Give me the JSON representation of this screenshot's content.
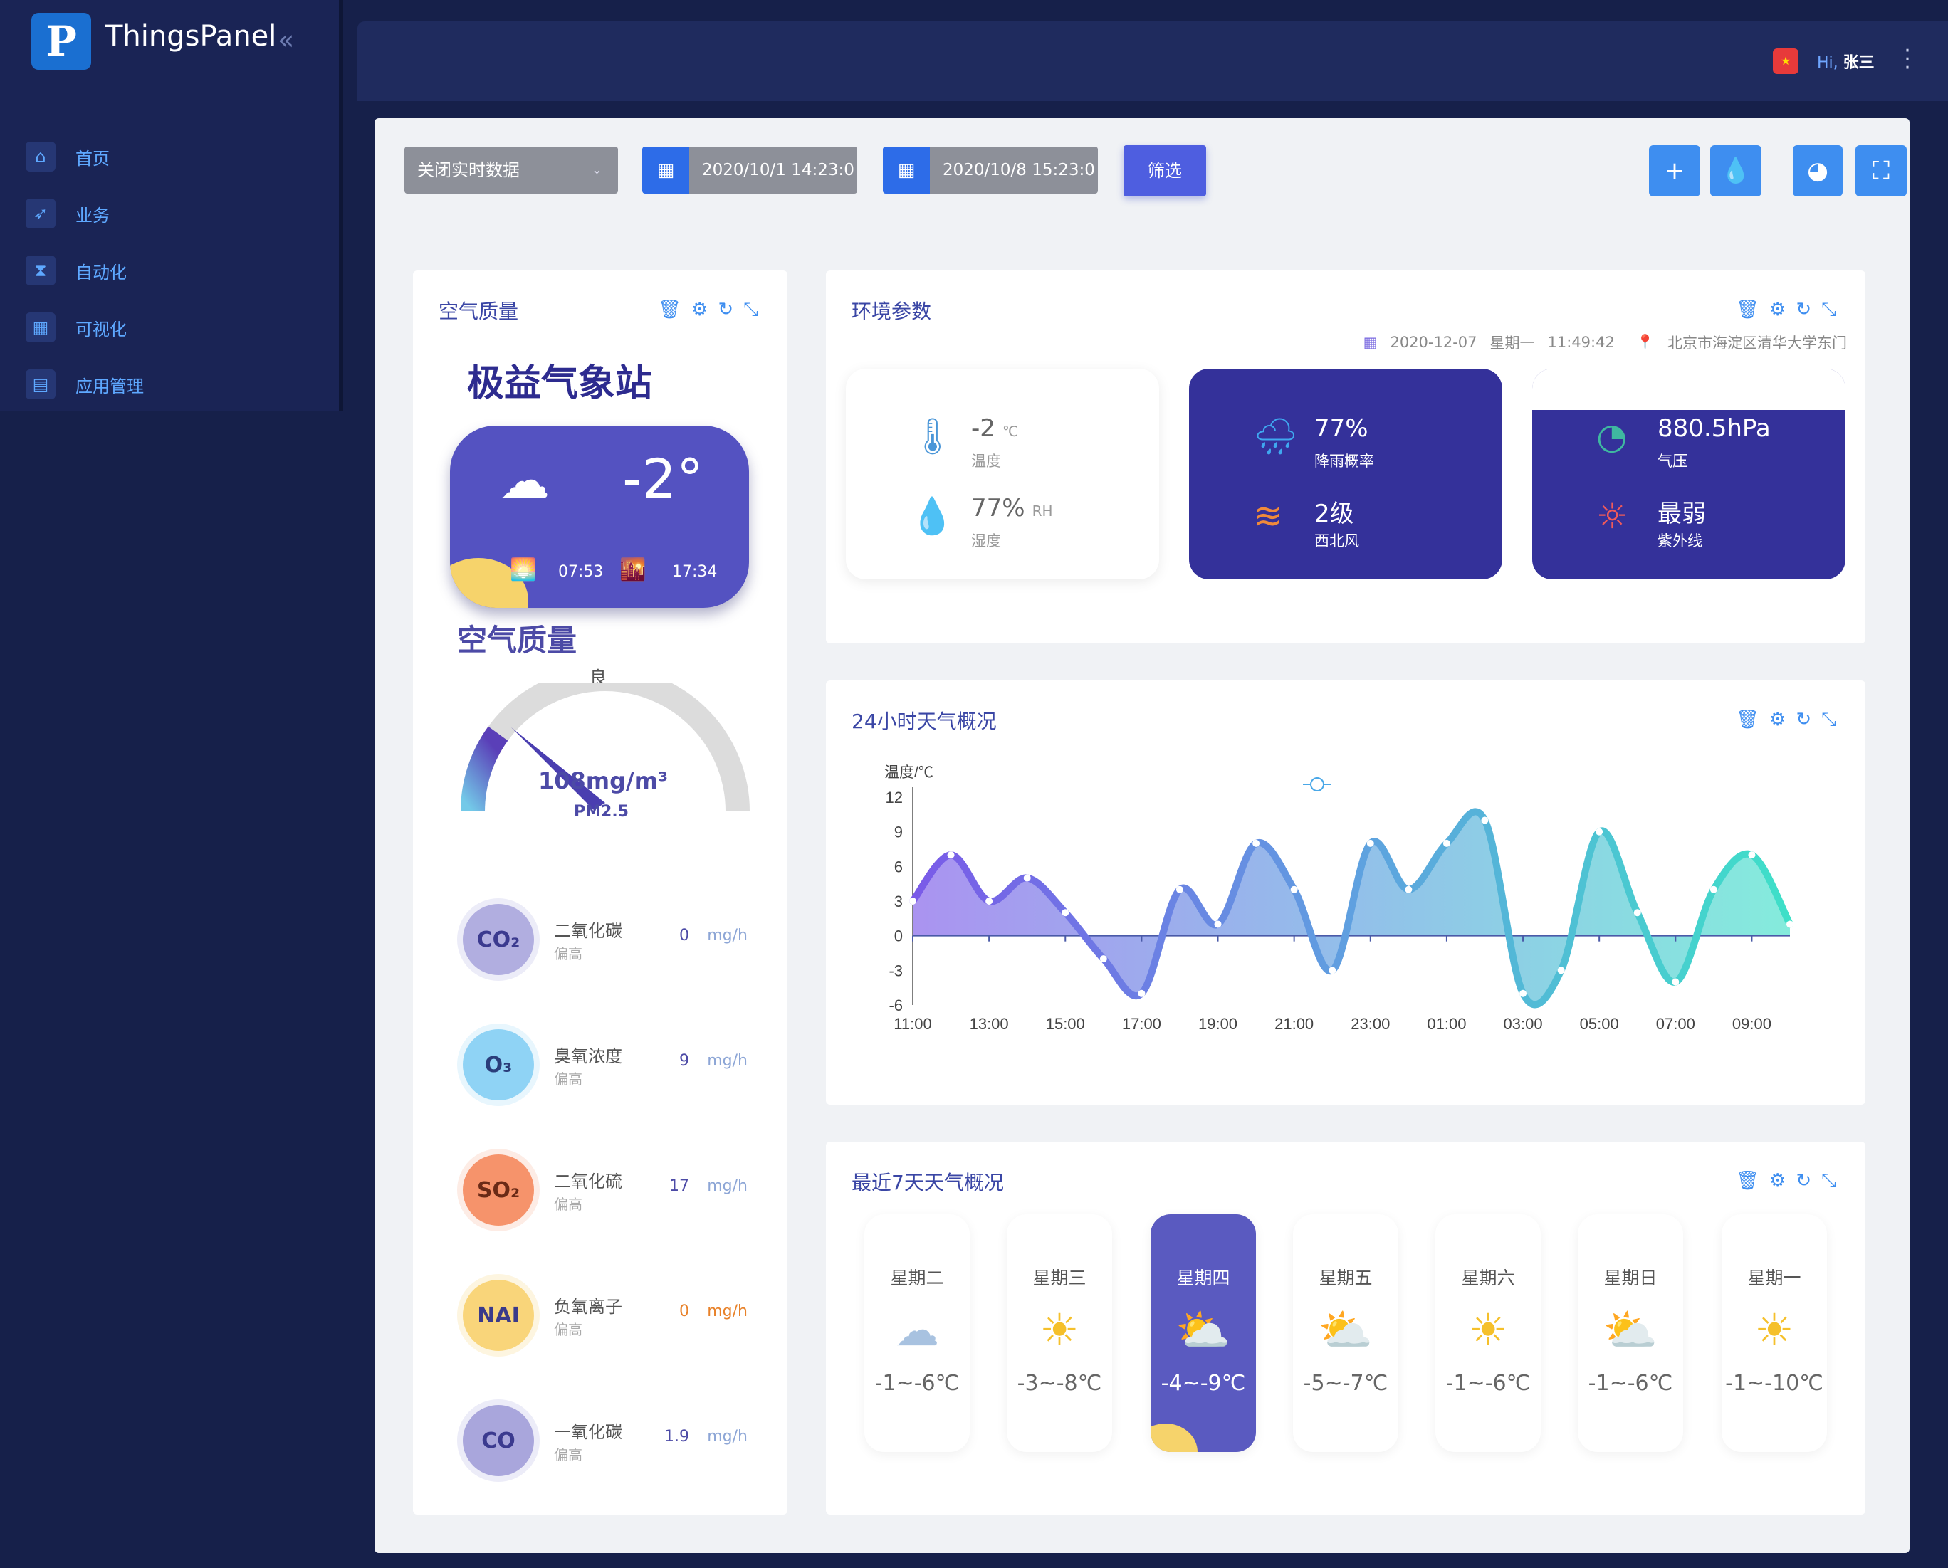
{
  "app": {
    "logo_letter": "P",
    "name": "ThingsPanel",
    "collapse_glyph": "«"
  },
  "sidebar": {
    "items": [
      {
        "label": "首页",
        "icon": "home-icon"
      },
      {
        "label": "业务",
        "icon": "compass-icon"
      },
      {
        "label": "自动化",
        "icon": "hourglass-icon"
      },
      {
        "label": "可视化",
        "icon": "chart-icon"
      },
      {
        "label": "应用管理",
        "icon": "basket-icon"
      }
    ]
  },
  "header": {
    "hi": "Hi,",
    "user": "张三",
    "flag_icon": "china-flag-icon"
  },
  "toolbar": {
    "realtime_select": "关闭实时数据",
    "start_date": "2020/10/1 14:23:0",
    "end_date": "2020/10/8 15:23:0",
    "filter_label": "筛选",
    "tools": [
      "plus-icon",
      "drop-icon",
      "weather-icon",
      "fullscreen-icon"
    ]
  },
  "air_card": {
    "title": "空气质量",
    "station": "极益气象站",
    "temperature": "-2°",
    "sunrise": "07:53",
    "sunset": "17:34",
    "aq_title": "空气质量",
    "gauge_label": "良",
    "gauge_value": "108mg/m³",
    "gauge_sub": "PM2.5",
    "gauge_fraction": 0.2,
    "pollutants": [
      {
        "badge": "CO₂",
        "name": "二氧化碳",
        "status": "偏高",
        "value": "0",
        "unit": "mg/h",
        "color": "#4c4aa6"
      },
      {
        "badge": "O₃",
        "name": "臭氧浓度",
        "status": "偏高",
        "value": "9",
        "unit": "mg/h",
        "color": "#4c4aa6"
      },
      {
        "badge": "SO₂",
        "name": "二氧化硫",
        "status": "偏高",
        "value": "17",
        "unit": "mg/h",
        "color": "#4c4aa6"
      },
      {
        "badge": "NAI",
        "name": "负氧离子",
        "status": "偏高",
        "value": "0",
        "unit": "mg/h",
        "color": "#e8822a"
      },
      {
        "badge": "CO",
        "name": "一氧化碳",
        "status": "偏高",
        "value": "1.9",
        "unit": "mg/h",
        "color": "#4c4aa6"
      }
    ]
  },
  "env_card": {
    "title": "环境参数",
    "date": "2020-12-07",
    "weekday": "星期一",
    "time": "11:49:42",
    "location": "北京市海淀区清华大学东门",
    "items": [
      {
        "value": "-2",
        "unit": "℃",
        "label": "温度"
      },
      {
        "value": "77%",
        "unit": "RH",
        "label": "湿度"
      },
      {
        "value": "77%",
        "unit": "",
        "label": "降雨概率"
      },
      {
        "value": "2级",
        "unit": "",
        "label": "西北风"
      },
      {
        "value": "880.5hPa",
        "unit": "",
        "label": "气压"
      },
      {
        "value": "最弱",
        "unit": "",
        "label": "紫外线"
      }
    ]
  },
  "chart_card": {
    "title": "24小时天气概况"
  },
  "chart_data": {
    "type": "line",
    "ylabel": "温度/℃",
    "ylim": [
      -6,
      12
    ],
    "yticks": [
      "12",
      "9",
      "6",
      "3",
      "0",
      "-3",
      "-6"
    ],
    "xticks": [
      "11:00",
      "13:00",
      "15:00",
      "17:00",
      "19:00",
      "21:00",
      "23:00",
      "01:00",
      "03:00",
      "05:00",
      "07:00",
      "09:00"
    ],
    "x": [
      "11:00",
      "12:00",
      "13:00",
      "14:00",
      "15:00",
      "16:00",
      "17:00",
      "18:00",
      "19:00",
      "20:00",
      "21:00",
      "22:00",
      "23:00",
      "00:00",
      "01:00",
      "02:00",
      "03:00",
      "04:00",
      "05:00",
      "06:00",
      "07:00",
      "08:00",
      "09:00",
      "10:00"
    ],
    "values": [
      3,
      7,
      3,
      5,
      2,
      -2,
      -5,
      4,
      1,
      8,
      4,
      -3,
      8,
      4,
      8,
      10,
      -5,
      -3,
      9,
      2,
      -4,
      4,
      7,
      1
    ],
    "grid": false,
    "legend": "none"
  },
  "week_card": {
    "title": "最近7天天气概况",
    "days": [
      {
        "name": "星期二",
        "range": "-1~-6℃",
        "icon": "snow-cloud-icon"
      },
      {
        "name": "星期三",
        "range": "-3~-8℃",
        "icon": "sun-icon"
      },
      {
        "name": "星期四",
        "range": "-4~-9℃",
        "icon": "sun-cloud-icon"
      },
      {
        "name": "星期五",
        "range": "-5~-7℃",
        "icon": "sun-cloud-icon"
      },
      {
        "name": "星期六",
        "range": "-1~-6℃",
        "icon": "sun-icon"
      },
      {
        "name": "星期日",
        "range": "-1~-6℃",
        "icon": "sun-cloud-icon"
      },
      {
        "name": "星期一",
        "range": "-1~-10℃",
        "icon": "sun-icon"
      }
    ]
  }
}
